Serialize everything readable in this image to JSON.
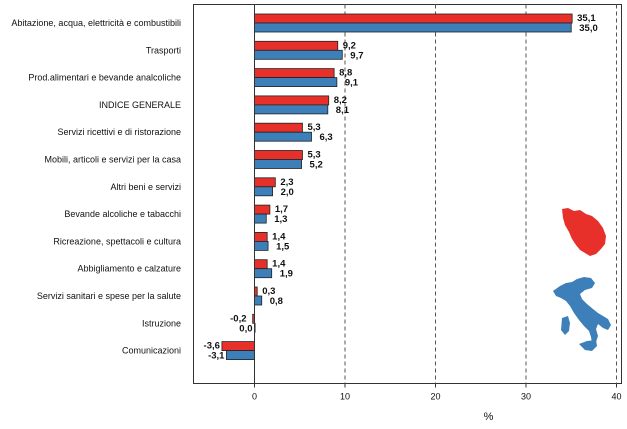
{
  "chart_data": {
    "type": "bar",
    "orientation": "horizontal",
    "categories": [
      "Abitazione, acqua, elettricità e combustibili",
      "Trasporti",
      "Prod.alimentari e bevande analcoliche",
      "INDICE GENERALE",
      "Servizi ricettivi e di ristorazione",
      "Mobili, articoli e servizi per la casa",
      "Altri beni e servizi",
      "Bevande alcoliche e tabacchi",
      "Ricreazione, spettacoli e cultura",
      "Abbigliamento e calzature",
      "Servizi sanitari e spese per la salute",
      "Istruzione",
      "Comunicazioni"
    ],
    "series": [
      {
        "color": "#e8302a",
        "values": [
          35.1,
          9.2,
          8.8,
          8.2,
          5.3,
          5.3,
          2.3,
          1.7,
          1.4,
          1.4,
          0.3,
          -0.2,
          -3.6
        ],
        "labels": [
          "35,1",
          "9,2",
          "8,8",
          "8,2",
          "5,3",
          "5,3",
          "2,3",
          "1,7",
          "1,4",
          "1,4",
          "0,3",
          "-0,2",
          "-3,6"
        ]
      },
      {
        "color": "#3d7fb8",
        "values": [
          35.0,
          9.7,
          9.1,
          8.1,
          6.3,
          5.2,
          2.0,
          1.3,
          1.5,
          1.9,
          0.8,
          0.0,
          -3.1
        ],
        "labels": [
          "35,0",
          "9,7",
          "9,1",
          "8,1",
          "6,3",
          "5,2",
          "2,0",
          "1,3",
          "1,5",
          "1,9",
          "0,8",
          "0,0",
          "-3,1"
        ]
      }
    ],
    "xlabel": "%",
    "xlim": [
      -7,
      40
    ],
    "xticks": [
      0,
      10,
      20,
      30,
      40
    ],
    "grid": "vertical dashed",
    "legend": "none"
  },
  "decorations": [
    {
      "name": "tuscany-map-icon",
      "color": "#e8302a"
    },
    {
      "name": "italy-map-icon",
      "color": "#3d7fb8"
    }
  ]
}
